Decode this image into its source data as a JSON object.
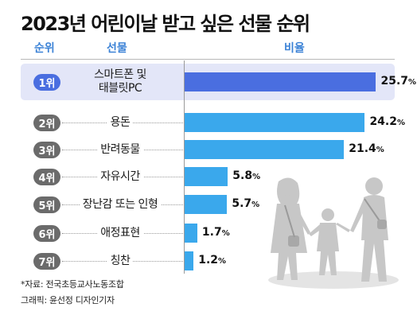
{
  "title": "2023년 어린이날 받고 싶은 선물 순위",
  "headers": {
    "rank": "순위",
    "gift": "선물",
    "ratio": "비율"
  },
  "colors": {
    "accent": "#4a6ee0",
    "bar": "#3aa8ec",
    "highlight_bg": "#e3e6f8",
    "rank_badge": "#6b6b6b",
    "header_text": "#3b82d6"
  },
  "unit": "%",
  "chart_data": {
    "type": "bar",
    "orientation": "horizontal",
    "title": "2023년 어린이날 받고 싶은 선물 순위",
    "xlabel": "",
    "ylabel": "",
    "categories": [
      "스마트폰 및 태블릿PC",
      "용돈",
      "반려동물",
      "자유시간",
      "장난감 또는 인형",
      "애정표현",
      "칭찬"
    ],
    "ranks": [
      "1위",
      "2위",
      "3위",
      "4위",
      "5위",
      "6위",
      "7위"
    ],
    "values": [
      25.7,
      24.2,
      21.4,
      5.8,
      5.7,
      1.7,
      1.2
    ],
    "value_labels": [
      "25.7",
      "24.2",
      "21.4",
      "5.8",
      "5.7",
      "1.7",
      "1.2"
    ],
    "xlim": [
      0,
      28
    ],
    "grid": false,
    "highlight_index": 0
  },
  "rows": [
    {
      "rank": "1위",
      "gift_lines": [
        "스마트폰 및",
        "태블릿PC"
      ]
    },
    {
      "rank": "2위",
      "gift_lines": [
        "용돈"
      ]
    },
    {
      "rank": "3위",
      "gift_lines": [
        "반려동물"
      ]
    },
    {
      "rank": "4위",
      "gift_lines": [
        "자유시간"
      ]
    },
    {
      "rank": "5위",
      "gift_lines": [
        "장난감 또는 인형"
      ]
    },
    {
      "rank": "6위",
      "gift_lines": [
        "애정표현"
      ]
    },
    {
      "rank": "7위",
      "gift_lines": [
        "칭찬"
      ]
    }
  ],
  "footnotes": {
    "source": "*자료: 전국초등교사노동조합",
    "credit": "그래픽: 윤선정 디자인기자"
  }
}
